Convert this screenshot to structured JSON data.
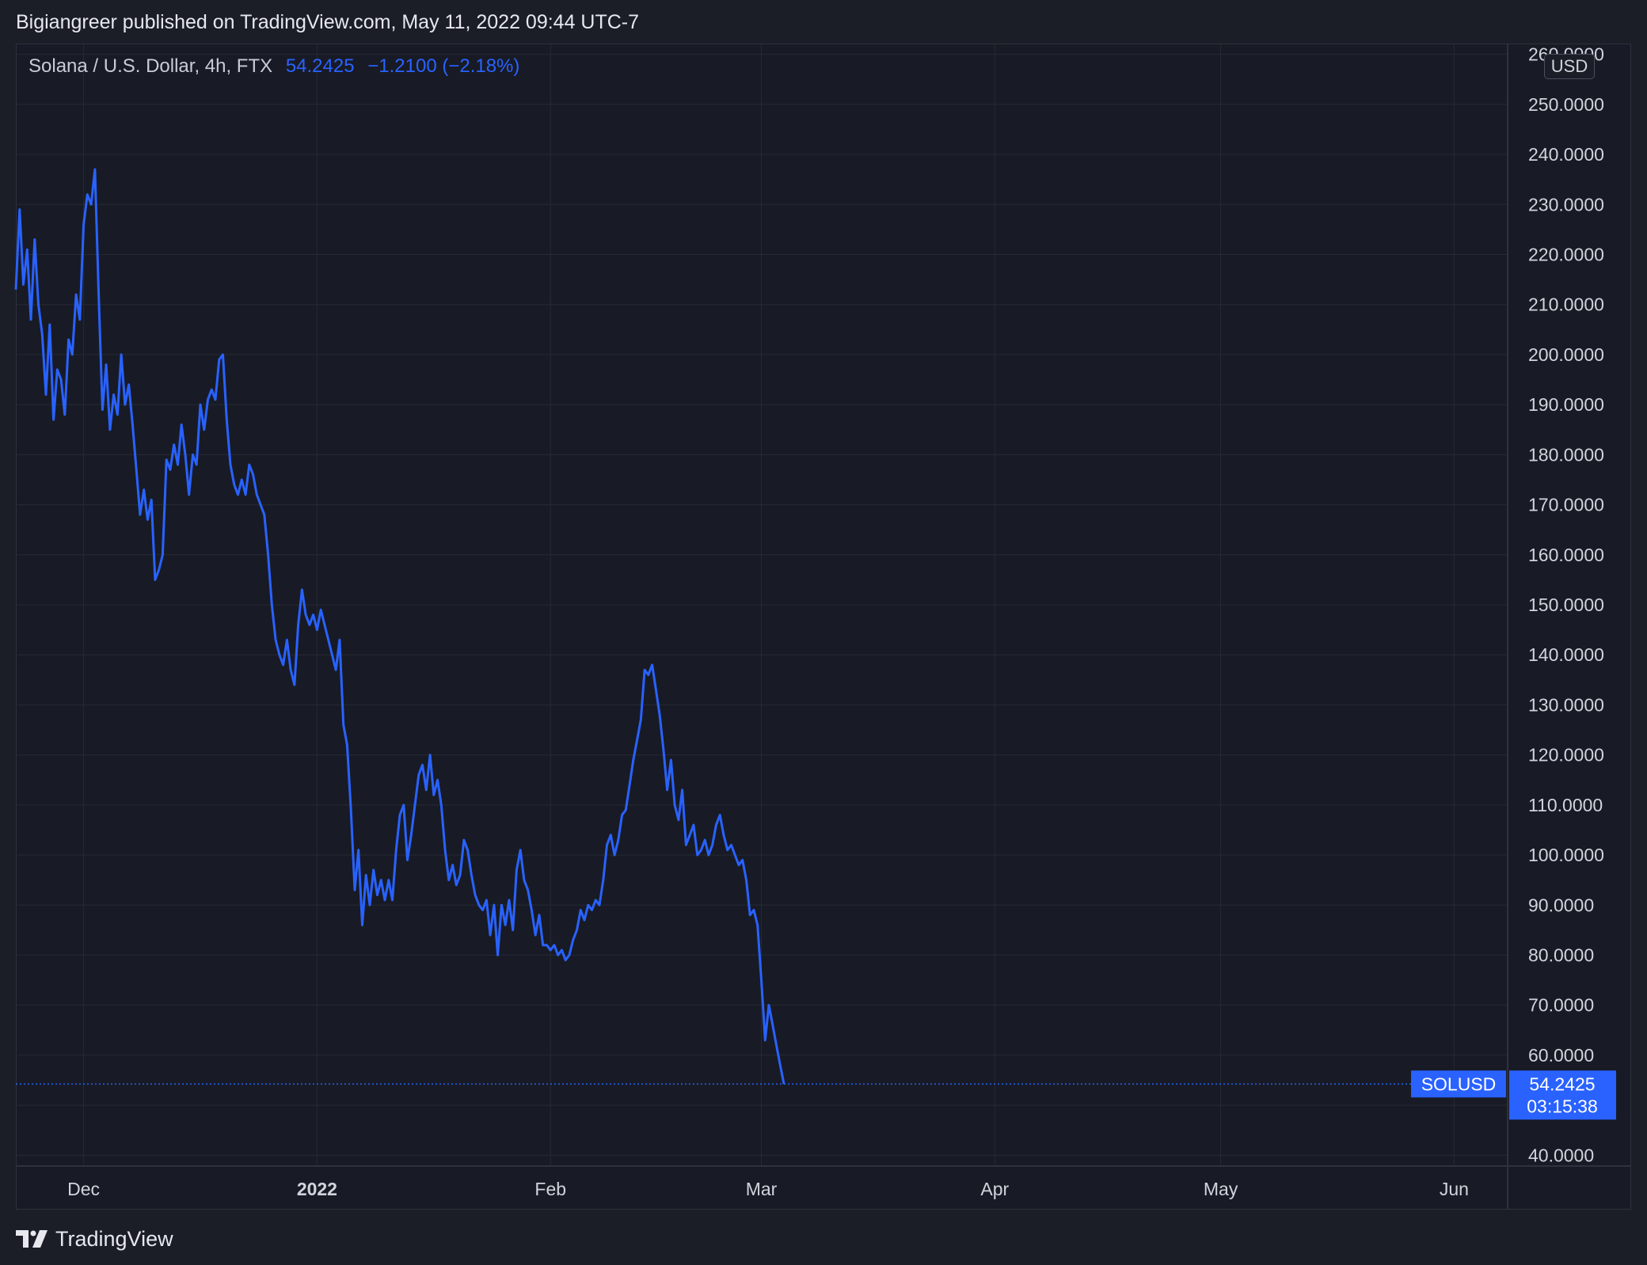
{
  "header": {
    "published": "Bigiangreer published on TradingView.com, May 11, 2022 09:44 UTC-7"
  },
  "legend": {
    "symbol": "Solana / U.S. Dollar, 4h, FTX",
    "price": "54.2425",
    "change": "−1.2100 (−2.18%)"
  },
  "currency": "USD",
  "brand": {
    "name": "TradingView",
    "icon": "tradingview-logo-icon"
  },
  "colors": {
    "line": "#2962ff",
    "grid": "#262a35",
    "text": "#d1d4dc",
    "background": "#181b25",
    "badge": "#2962ff"
  },
  "chart_data": {
    "type": "line",
    "symbol_label": "SOLUSD",
    "last_value": 54.2425,
    "last_value_label": "54.2425",
    "countdown": "03:15:38",
    "ylim": [
      38.0,
      262.0
    ],
    "y_ticks": [
      40,
      50,
      60,
      70,
      80,
      90,
      100,
      110,
      120,
      130,
      140,
      150,
      160,
      170,
      180,
      190,
      200,
      210,
      220,
      230,
      240,
      250,
      260
    ],
    "y_tick_labels": [
      "40.0000",
      "50.0000",
      "60.0000",
      "70.0000",
      "80.0000",
      "90.0000",
      "100.0000",
      "110.0000",
      "120.0000",
      "130.0000",
      "140.0000",
      "150.0000",
      "160.0000",
      "170.0000",
      "180.0000",
      "190.0000",
      "200.0000",
      "210.0000",
      "220.0000",
      "230.0000",
      "240.0000",
      "250.0000",
      "260.0000"
    ],
    "xlim": [
      "2021-11-22",
      "2022-06-08"
    ],
    "x_ticks": [
      {
        "date": "2021-12-01",
        "label": "Dec",
        "bold": false
      },
      {
        "date": "2022-01-01",
        "label": "2022",
        "bold": true
      },
      {
        "date": "2022-02-01",
        "label": "Feb",
        "bold": false
      },
      {
        "date": "2022-03-01",
        "label": "Mar",
        "bold": false
      },
      {
        "date": "2022-04-01",
        "label": "Apr",
        "bold": false
      },
      {
        "date": "2022-05-01",
        "label": "May",
        "bold": false
      },
      {
        "date": "2022-06-01",
        "label": "Jun",
        "bold": false
      }
    ],
    "grid": true,
    "series": [
      {
        "values": [
          [
            "2021-11-22T00:00",
            213
          ],
          [
            "2021-11-22T12:00",
            229
          ],
          [
            "2021-11-23T00:00",
            214
          ],
          [
            "2021-11-23T12:00",
            221
          ],
          [
            "2021-11-24T00:00",
            207
          ],
          [
            "2021-11-24T12:00",
            223
          ],
          [
            "2021-11-25T00:00",
            210
          ],
          [
            "2021-11-25T12:00",
            204
          ],
          [
            "2021-11-26T00:00",
            192
          ],
          [
            "2021-11-26T12:00",
            206
          ],
          [
            "2021-11-27T00:00",
            187
          ],
          [
            "2021-11-27T12:00",
            197
          ],
          [
            "2021-11-28T00:00",
            195
          ],
          [
            "2021-11-28T12:00",
            188
          ],
          [
            "2021-11-29T00:00",
            203
          ],
          [
            "2021-11-29T12:00",
            200
          ],
          [
            "2021-11-30T00:00",
            212
          ],
          [
            "2021-11-30T12:00",
            207
          ],
          [
            "2021-12-01T00:00",
            226
          ],
          [
            "2021-12-01T12:00",
            232
          ],
          [
            "2021-12-02T00:00",
            230
          ],
          [
            "2021-12-02T12:00",
            237
          ],
          [
            "2021-12-03T00:00",
            212
          ],
          [
            "2021-12-03T12:00",
            189
          ],
          [
            "2021-12-04T00:00",
            198
          ],
          [
            "2021-12-04T12:00",
            185
          ],
          [
            "2021-12-05T00:00",
            192
          ],
          [
            "2021-12-05T12:00",
            188
          ],
          [
            "2021-12-06T00:00",
            200
          ],
          [
            "2021-12-06T12:00",
            190
          ],
          [
            "2021-12-07T00:00",
            194
          ],
          [
            "2021-12-07T12:00",
            186
          ],
          [
            "2021-12-08T00:00",
            177
          ],
          [
            "2021-12-08T12:00",
            168
          ],
          [
            "2021-12-09T00:00",
            173
          ],
          [
            "2021-12-09T12:00",
            167
          ],
          [
            "2021-12-10T00:00",
            171
          ],
          [
            "2021-12-10T12:00",
            155
          ],
          [
            "2021-12-11T00:00",
            157
          ],
          [
            "2021-12-11T12:00",
            160
          ],
          [
            "2021-12-12T00:00",
            179
          ],
          [
            "2021-12-12T12:00",
            177
          ],
          [
            "2021-12-13T00:00",
            182
          ],
          [
            "2021-12-13T12:00",
            178
          ],
          [
            "2021-12-14T00:00",
            186
          ],
          [
            "2021-12-14T12:00",
            180
          ],
          [
            "2021-12-15T00:00",
            172
          ],
          [
            "2021-12-15T12:00",
            180
          ],
          [
            "2021-12-16T00:00",
            178
          ],
          [
            "2021-12-16T12:00",
            190
          ],
          [
            "2021-12-17T00:00",
            185
          ],
          [
            "2021-12-17T12:00",
            191
          ],
          [
            "2021-12-18T00:00",
            193
          ],
          [
            "2021-12-18T12:00",
            191
          ],
          [
            "2021-12-19T00:00",
            199
          ],
          [
            "2021-12-19T12:00",
            200
          ],
          [
            "2021-12-20T00:00",
            187
          ],
          [
            "2021-12-20T12:00",
            178
          ],
          [
            "2021-12-21T00:00",
            174
          ],
          [
            "2021-12-21T12:00",
            172
          ],
          [
            "2021-12-22T00:00",
            175
          ],
          [
            "2021-12-22T12:00",
            172
          ],
          [
            "2021-12-23T00:00",
            178
          ],
          [
            "2021-12-23T12:00",
            176
          ],
          [
            "2021-12-24T00:00",
            172
          ],
          [
            "2021-12-24T12:00",
            170
          ],
          [
            "2021-12-25T00:00",
            168
          ],
          [
            "2021-12-25T12:00",
            160
          ],
          [
            "2021-12-26T00:00",
            150
          ],
          [
            "2021-12-26T12:00",
            143
          ],
          [
            "2021-12-27T00:00",
            140
          ],
          [
            "2021-12-27T12:00",
            138
          ],
          [
            "2021-12-28T00:00",
            143
          ],
          [
            "2021-12-28T12:00",
            137
          ],
          [
            "2021-12-29T00:00",
            134
          ],
          [
            "2021-12-29T12:00",
            146
          ],
          [
            "2021-12-30T00:00",
            153
          ],
          [
            "2021-12-30T12:00",
            148
          ],
          [
            "2021-12-31T00:00",
            146
          ],
          [
            "2021-12-31T12:00",
            148
          ],
          [
            "2022-01-01T00:00",
            145
          ],
          [
            "2022-01-01T12:00",
            149
          ],
          [
            "2022-01-02T00:00",
            146
          ],
          [
            "2022-01-02T12:00",
            143
          ],
          [
            "2022-01-03T00:00",
            140
          ],
          [
            "2022-01-03T12:00",
            137
          ],
          [
            "2022-01-04T00:00",
            143
          ],
          [
            "2022-01-04T12:00",
            126
          ],
          [
            "2022-01-05T00:00",
            122
          ],
          [
            "2022-01-05T12:00",
            109
          ],
          [
            "2022-01-06T00:00",
            93
          ],
          [
            "2022-01-06T12:00",
            101
          ],
          [
            "2022-01-07T00:00",
            86
          ],
          [
            "2022-01-07T12:00",
            96
          ],
          [
            "2022-01-08T00:00",
            90
          ],
          [
            "2022-01-08T12:00",
            97
          ],
          [
            "2022-01-09T00:00",
            92
          ],
          [
            "2022-01-09T12:00",
            95
          ],
          [
            "2022-01-10T00:00",
            91
          ],
          [
            "2022-01-10T12:00",
            95
          ],
          [
            "2022-01-11T00:00",
            91
          ],
          [
            "2022-01-11T12:00",
            101
          ],
          [
            "2022-01-12T00:00",
            108
          ],
          [
            "2022-01-12T12:00",
            110
          ],
          [
            "2022-01-13T00:00",
            99
          ],
          [
            "2022-01-13T12:00",
            104
          ],
          [
            "2022-01-14T00:00",
            110
          ],
          [
            "2022-01-14T12:00",
            116
          ],
          [
            "2022-01-15T00:00",
            118
          ],
          [
            "2022-01-15T12:00",
            113
          ],
          [
            "2022-01-16T00:00",
            120
          ],
          [
            "2022-01-16T12:00",
            112
          ],
          [
            "2022-01-17T00:00",
            115
          ],
          [
            "2022-01-17T12:00",
            110
          ],
          [
            "2022-01-18T00:00",
            101
          ],
          [
            "2022-01-18T12:00",
            95
          ],
          [
            "2022-01-19T00:00",
            98
          ],
          [
            "2022-01-19T12:00",
            94
          ],
          [
            "2022-01-20T00:00",
            96
          ],
          [
            "2022-01-20T12:00",
            103
          ],
          [
            "2022-01-21T00:00",
            101
          ],
          [
            "2022-01-21T12:00",
            96
          ],
          [
            "2022-01-22T00:00",
            92
          ],
          [
            "2022-01-22T12:00",
            90
          ],
          [
            "2022-01-23T00:00",
            89
          ],
          [
            "2022-01-23T12:00",
            91
          ],
          [
            "2022-01-24T00:00",
            84
          ],
          [
            "2022-01-24T12:00",
            90
          ],
          [
            "2022-01-25T00:00",
            80
          ],
          [
            "2022-01-25T12:00",
            90
          ],
          [
            "2022-01-26T00:00",
            86
          ],
          [
            "2022-01-26T12:00",
            91
          ],
          [
            "2022-01-27T00:00",
            85
          ],
          [
            "2022-01-27T12:00",
            97
          ],
          [
            "2022-01-28T00:00",
            101
          ],
          [
            "2022-01-28T12:00",
            95
          ],
          [
            "2022-01-29T00:00",
            93
          ],
          [
            "2022-01-29T12:00",
            89
          ],
          [
            "2022-01-30T00:00",
            84
          ],
          [
            "2022-01-30T12:00",
            88
          ],
          [
            "2022-01-31T00:00",
            82
          ],
          [
            "2022-01-31T12:00",
            82
          ],
          [
            "2022-02-01T00:00",
            81
          ],
          [
            "2022-02-01T12:00",
            82
          ],
          [
            "2022-02-02T00:00",
            80
          ],
          [
            "2022-02-02T12:00",
            81
          ],
          [
            "2022-02-03T00:00",
            79
          ],
          [
            "2022-02-03T12:00",
            80
          ],
          [
            "2022-02-04T00:00",
            83
          ],
          [
            "2022-02-04T12:00",
            85
          ],
          [
            "2022-02-05T00:00",
            89
          ],
          [
            "2022-02-05T12:00",
            87
          ],
          [
            "2022-02-06T00:00",
            90
          ],
          [
            "2022-02-06T12:00",
            89
          ],
          [
            "2022-02-07T00:00",
            91
          ],
          [
            "2022-02-07T12:00",
            90
          ],
          [
            "2022-02-08T00:00",
            95
          ],
          [
            "2022-02-08T12:00",
            102
          ],
          [
            "2022-02-09T00:00",
            104
          ],
          [
            "2022-02-09T12:00",
            100
          ],
          [
            "2022-02-10T00:00",
            103
          ],
          [
            "2022-02-10T12:00",
            108
          ],
          [
            "2022-02-11T00:00",
            109
          ],
          [
            "2022-02-11T12:00",
            114
          ],
          [
            "2022-02-12T00:00",
            119
          ],
          [
            "2022-02-12T12:00",
            123
          ],
          [
            "2022-02-13T00:00",
            127
          ],
          [
            "2022-02-13T12:00",
            137
          ],
          [
            "2022-02-14T00:00",
            136
          ],
          [
            "2022-02-14T12:00",
            138
          ],
          [
            "2022-02-15T00:00",
            133
          ],
          [
            "2022-02-15T12:00",
            128
          ],
          [
            "2022-02-16T00:00",
            121
          ],
          [
            "2022-02-16T12:00",
            113
          ],
          [
            "2022-02-17T00:00",
            119
          ],
          [
            "2022-02-17T12:00",
            110
          ],
          [
            "2022-02-18T00:00",
            107
          ],
          [
            "2022-02-18T12:00",
            113
          ],
          [
            "2022-02-19T00:00",
            102
          ],
          [
            "2022-02-19T12:00",
            104
          ],
          [
            "2022-02-20T00:00",
            106
          ],
          [
            "2022-02-20T12:00",
            100
          ],
          [
            "2022-02-21T00:00",
            101
          ],
          [
            "2022-02-21T12:00",
            103
          ],
          [
            "2022-02-22T00:00",
            100
          ],
          [
            "2022-02-22T12:00",
            102
          ],
          [
            "2022-02-23T00:00",
            106
          ],
          [
            "2022-02-23T12:00",
            108
          ],
          [
            "2022-02-24T00:00",
            104
          ],
          [
            "2022-02-24T12:00",
            101
          ],
          [
            "2022-02-25T00:00",
            102
          ],
          [
            "2022-02-25T12:00",
            100
          ],
          [
            "2022-02-26T00:00",
            98
          ],
          [
            "2022-02-26T12:00",
            99
          ],
          [
            "2022-02-27T00:00",
            95
          ],
          [
            "2022-02-27T12:00",
            88
          ],
          [
            "2022-02-28T00:00",
            89
          ],
          [
            "2022-02-28T12:00",
            86
          ],
          [
            "2022-03-01T00:00",
            75
          ],
          [
            "2022-03-01T12:00",
            63
          ],
          [
            "2022-03-02T00:00",
            70
          ],
          [
            "2022-03-02T12:00",
            66
          ],
          [
            "2022-03-03T00:00",
            62
          ],
          [
            "2022-03-03T12:00",
            58
          ],
          [
            "2022-03-04T00:00",
            54.2425
          ]
        ]
      }
    ]
  }
}
